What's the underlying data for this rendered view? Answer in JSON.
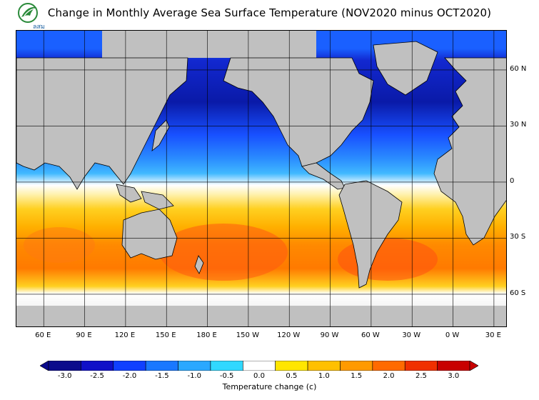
{
  "header": {
    "title": "Change in Monthly Average Sea Surface Temperature (NOV2020 minus OCT2020)",
    "logo_text": "ลสม"
  },
  "map": {
    "projection": "equirectangular",
    "lon_range": [
      40,
      400
    ],
    "lat_range": [
      -78,
      81
    ],
    "grid_step_deg": 30,
    "lat_labels": [
      "60 N",
      "30 N",
      "0",
      "30 S",
      "60 S"
    ],
    "lon_labels": [
      "60 E",
      "90 E",
      "120 E",
      "150 E",
      "180 E",
      "150 W",
      "120 W",
      "90 W",
      "60 W",
      "30 W",
      "0 W",
      "30 E"
    ],
    "colors": {
      "land": "#c0c0c0",
      "ice": "#e4e4e4",
      "grid": "#000000"
    }
  },
  "colorbar": {
    "title": "Temperature change  (c)",
    "tick_labels": [
      "-3.0",
      "-2.5",
      "-2.0",
      "-1.5",
      "-1.0",
      "-0.5",
      "0.0",
      "0.5",
      "1.0",
      "1.5",
      "2.0",
      "2.5",
      "3.0"
    ],
    "colors": [
      "#0a0a8c",
      "#1010c8",
      "#1040ff",
      "#1a78ff",
      "#2aa8ff",
      "#30d8ff",
      "#ffffff",
      "#ffe600",
      "#ffc000",
      "#ff9a00",
      "#ff6a00",
      "#f03000",
      "#c80000"
    ]
  }
}
